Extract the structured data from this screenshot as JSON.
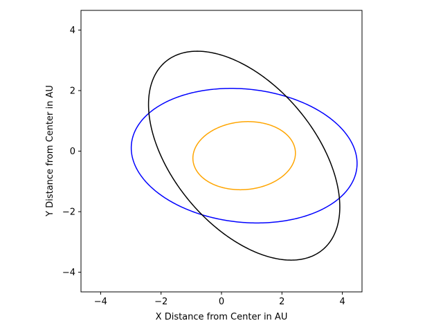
{
  "chart_data": {
    "type": "line",
    "title": "",
    "xlabel": "X Distance from Center in AU",
    "ylabel": "Y Distance from Center in AU",
    "xlim": [
      -4.65,
      4.65
    ],
    "ylim": [
      -4.65,
      4.65
    ],
    "xticks": [
      -4,
      -2,
      0,
      2,
      4
    ],
    "yticks": [
      -4,
      -2,
      0,
      2,
      4
    ],
    "xtick_labels": [
      "−4",
      "−2",
      "0",
      "2",
      "4"
    ],
    "ytick_labels": [
      "−4",
      "−2",
      "0",
      "2",
      "4"
    ],
    "grid": false,
    "legend": "none",
    "aspect": "equal",
    "series": [
      {
        "color": "#ffa500",
        "shape": "ellipse",
        "center": [
          0.75,
          -0.15
        ],
        "semi_major": 1.7,
        "semi_minor": 1.12,
        "rotation_deg": 5,
        "points": [
          [
            2.44,
            0.0
          ],
          [
            0.95,
            1.03
          ],
          [
            -0.95,
            -0.3
          ],
          [
            0.55,
            -1.3
          ]
        ]
      },
      {
        "color": "#0000ff",
        "shape": "ellipse",
        "center": [
          0.75,
          -0.15
        ],
        "semi_major": 3.75,
        "semi_minor": 2.2,
        "rotation_deg": -6,
        "points": [
          [
            4.5,
            -0.55
          ],
          [
            0.0,
            2.0
          ],
          [
            -3.0,
            0.25
          ],
          [
            1.5,
            -2.3
          ]
        ]
      },
      {
        "color": "#000000",
        "shape": "ellipse",
        "center": [
          0.75,
          -0.15
        ],
        "semi_major": 4.05,
        "semi_minor": 2.35,
        "rotation_deg": -50,
        "points": [
          [
            -0.4,
            3.18
          ],
          [
            -2.35,
            1.1
          ],
          [
            1.9,
            -3.46
          ],
          [
            3.8,
            -1.4
          ]
        ]
      }
    ]
  }
}
